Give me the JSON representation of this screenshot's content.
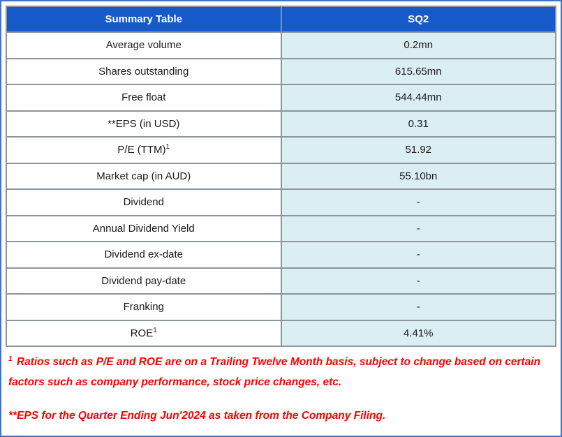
{
  "colors": {
    "frame_blue": "#4472C4",
    "header_bg": "#1659C9",
    "header_text": "#FFFFFF",
    "value_cell_bg": "#DAEEF3",
    "label_cell_bg": "#FFFFFF",
    "grid_border": "#8C959C",
    "body_text": "#1A1A1A",
    "footnote_red": "#FF0000"
  },
  "table": {
    "header": {
      "col1": "Summary Table",
      "col2": "SQ2"
    },
    "rows": [
      {
        "label": "Average volume",
        "sup": "",
        "value": "0.2mn"
      },
      {
        "label": "Shares outstanding",
        "sup": "",
        "value": "615.65mn"
      },
      {
        "label": "Free float",
        "sup": "",
        "value": "544.44mn"
      },
      {
        "label": "**EPS (in USD)",
        "sup": "",
        "value": "0.31"
      },
      {
        "label": "P/E (TTM)",
        "sup": "1",
        "value": "51.92"
      },
      {
        "label": "Market cap (in AUD)",
        "sup": "",
        "value": "55.10bn"
      },
      {
        "label": "Dividend",
        "sup": "",
        "value": "-"
      },
      {
        "label": "Annual Dividend Yield",
        "sup": "",
        "value": "-"
      },
      {
        "label": "Dividend ex-date",
        "sup": "",
        "value": "-"
      },
      {
        "label": "Dividend pay-date",
        "sup": "",
        "value": "-"
      },
      {
        "label": "Franking",
        "sup": "",
        "value": "-"
      },
      {
        "label": "ROE",
        "sup": "1",
        "value": "4.41%"
      }
    ]
  },
  "footnotes": {
    "note1_sup": "1",
    "note1_text": " Ratios such as P/E and ROE are on a Trailing Twelve Month basis, subject to change based on certain factors such as company performance, stock price changes, etc.",
    "note2_text": "**EPS for the Quarter Ending Jun'2024 as taken from the Company Filing."
  }
}
